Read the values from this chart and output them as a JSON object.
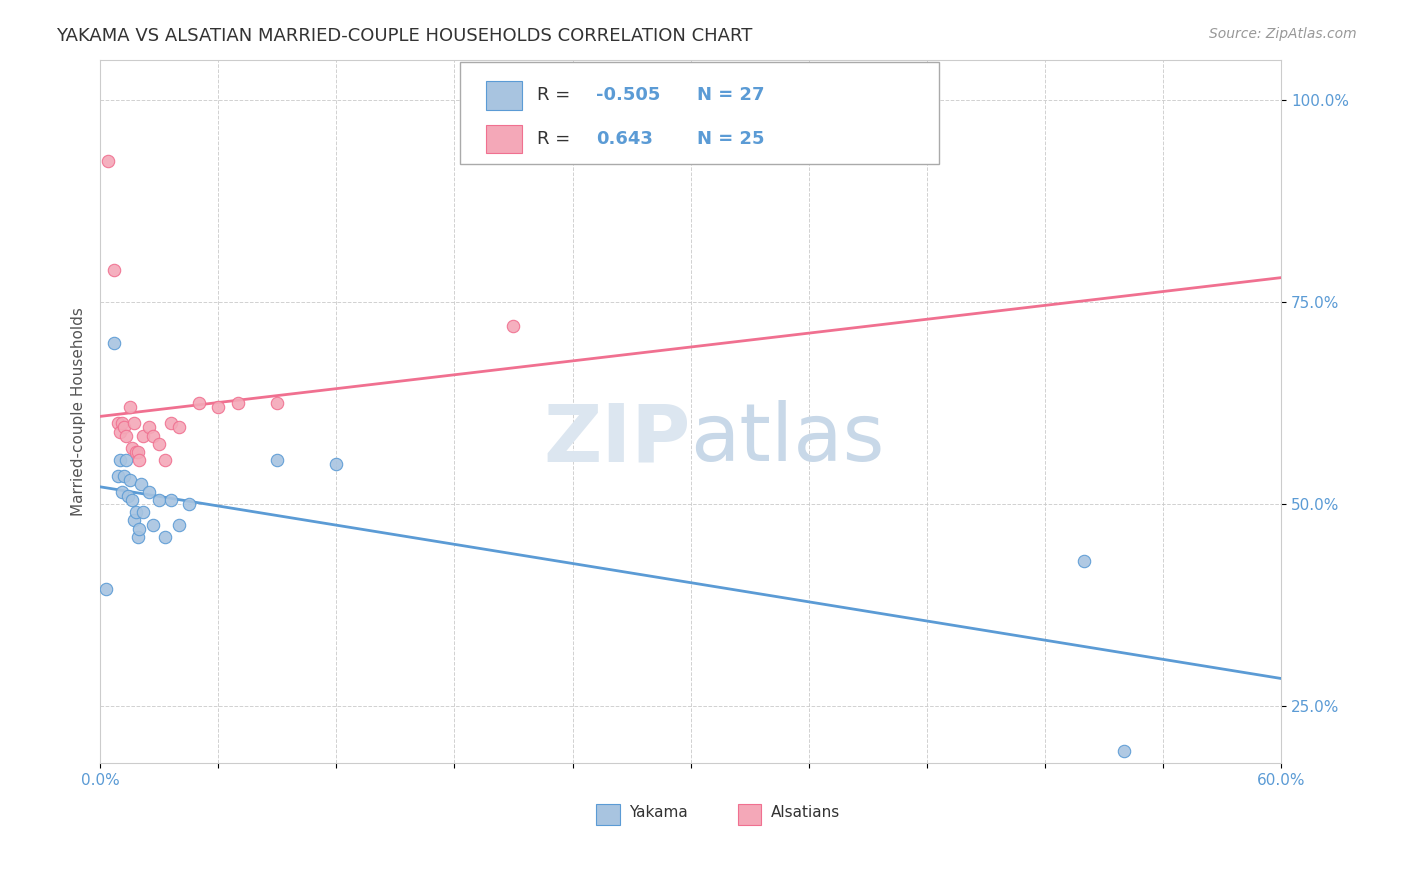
{
  "title": "YAKAMA VS ALSATIAN MARRIED-COUPLE HOUSEHOLDS CORRELATION CHART",
  "source_text": "Source: ZipAtlas.com",
  "ylabel": "Married-couple Households",
  "xlim": [
    0.0,
    0.6
  ],
  "ylim": [
    0.18,
    1.05
  ],
  "xticks": [
    0.0,
    0.06,
    0.12,
    0.18,
    0.24,
    0.3,
    0.36,
    0.42,
    0.48,
    0.54,
    0.6
  ],
  "ytick_labels": [
    "25.0%",
    "50.0%",
    "75.0%",
    "100.0%"
  ],
  "ytick_values": [
    0.25,
    0.5,
    0.75,
    1.0
  ],
  "yakama_R": -0.505,
  "yakama_N": 27,
  "alsatian_R": 0.643,
  "alsatian_N": 25,
  "yakama_color": "#a8c4e0",
  "alsatian_color": "#f4a8b8",
  "yakama_line_color": "#5b9bd5",
  "alsatian_line_color": "#f07090",
  "watermark_text": "ZIPatlas",
  "watermark_color": "#dce6f0",
  "background_color": "#ffffff",
  "grid_color": "#cccccc",
  "yakama_x": [
    0.003,
    0.007,
    0.009,
    0.01,
    0.011,
    0.012,
    0.013,
    0.014,
    0.015,
    0.016,
    0.017,
    0.018,
    0.019,
    0.02,
    0.021,
    0.022,
    0.025,
    0.027,
    0.03,
    0.033,
    0.036,
    0.04,
    0.045,
    0.09,
    0.12,
    0.5,
    0.52
  ],
  "yakama_y": [
    0.395,
    0.7,
    0.535,
    0.555,
    0.515,
    0.535,
    0.555,
    0.51,
    0.53,
    0.505,
    0.48,
    0.49,
    0.46,
    0.47,
    0.525,
    0.49,
    0.515,
    0.475,
    0.505,
    0.46,
    0.505,
    0.475,
    0.5,
    0.555,
    0.55,
    0.43,
    0.195
  ],
  "alsatian_x": [
    0.004,
    0.007,
    0.009,
    0.01,
    0.011,
    0.012,
    0.013,
    0.015,
    0.016,
    0.017,
    0.018,
    0.019,
    0.02,
    0.022,
    0.025,
    0.027,
    0.03,
    0.033,
    0.036,
    0.04,
    0.05,
    0.06,
    0.07,
    0.09,
    0.21
  ],
  "alsatian_y": [
    0.925,
    0.79,
    0.6,
    0.59,
    0.6,
    0.595,
    0.585,
    0.62,
    0.57,
    0.6,
    0.565,
    0.565,
    0.555,
    0.585,
    0.595,
    0.585,
    0.575,
    0.555,
    0.6,
    0.595,
    0.625,
    0.62,
    0.625,
    0.625,
    0.72
  ],
  "yakama_line_x_start": 0.0,
  "yakama_line_x_end": 0.6,
  "alsatian_line_x_start": 0.0,
  "alsatian_line_x_end": 0.6
}
